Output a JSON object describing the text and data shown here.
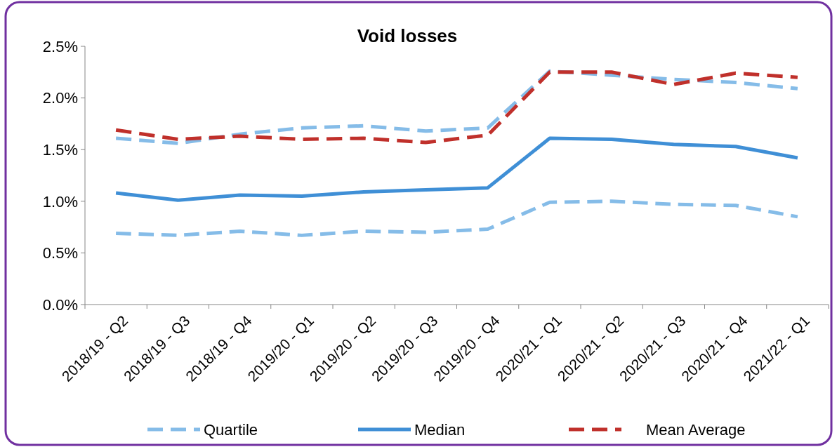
{
  "chart_data": {
    "type": "line",
    "title": "Void losses",
    "categories": [
      "2018/19 - Q2",
      "2018/19 - Q3",
      "2018/19 - Q4",
      "2019/20 - Q1",
      "2019/20 - Q2",
      "2019/20 - Q3",
      "2019/20 - Q4",
      "2020/21 - Q1",
      "2020/21 - Q2",
      "2020/21 - Q3",
      "2020/21 - Q4",
      "2021/22 - Q1"
    ],
    "ylim": [
      0,
      2.5
    ],
    "yticks": [
      {
        "value": 0,
        "label": "0.0%"
      },
      {
        "value": 0.5,
        "label": "0.5%"
      },
      {
        "value": 1,
        "label": "1.0%"
      },
      {
        "value": 1.5,
        "label": "1.5%"
      },
      {
        "value": 2,
        "label": "2.0%"
      },
      {
        "value": 2.5,
        "label": "2.5%"
      }
    ],
    "grid": false,
    "legend": "bottom",
    "series": [
      {
        "name": "Quartile",
        "color": "#85bce8",
        "line_style": "dashed",
        "values": [
          1.61,
          1.56,
          1.65,
          1.71,
          1.73,
          1.68,
          1.71,
          2.26,
          2.22,
          2.18,
          2.15,
          2.09
        ]
      },
      {
        "name": "Median",
        "color": "#3f8fd6",
        "line_style": "solid",
        "values": [
          1.08,
          1.01,
          1.06,
          1.05,
          1.09,
          1.11,
          1.13,
          1.61,
          1.6,
          1.55,
          1.53,
          1.42
        ]
      },
      {
        "name": "Mean Average",
        "color": "#c0302b",
        "line_style": "dashed",
        "values": [
          1.69,
          1.6,
          1.63,
          1.6,
          1.61,
          1.57,
          1.64,
          2.25,
          2.25,
          2.13,
          2.24,
          2.2
        ]
      },
      {
        "color": "#85bce8",
        "line_style": "dashed",
        "values": [
          0.69,
          0.67,
          0.71,
          0.67,
          0.71,
          0.7,
          0.73,
          0.99,
          1.0,
          0.97,
          0.96,
          0.85
        ]
      }
    ]
  }
}
